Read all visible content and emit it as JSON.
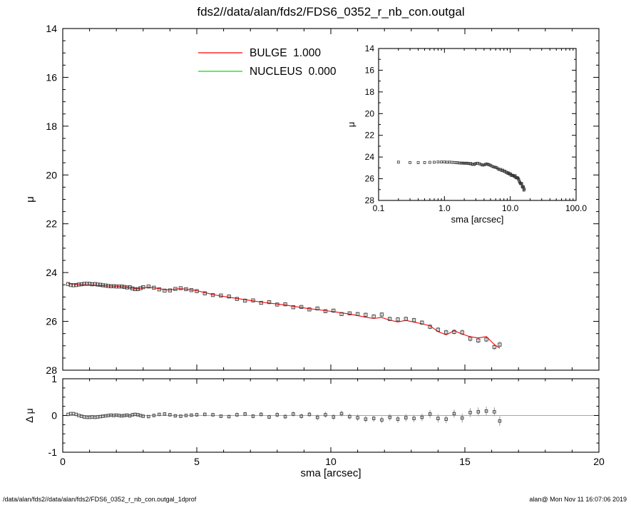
{
  "title": "fds2//data/alan/fds2/FDS6_0352_r_nb_con.outgal",
  "footer": {
    "left": "/data/alan/fds2//data/alan/fds2/FDS6_0352_r_nb_con.outgal_1dprof",
    "right": "alan@ Mon Nov 11 16:07:06 2019"
  },
  "colors": {
    "bulge_line": "#ff0000",
    "nucleus_line": "#00e000",
    "data_marker": "#3a3a3a",
    "error_bar": "#9a9a9a",
    "axis": "#000000",
    "zero_line": "#8a8a8a",
    "background": "#ffffff"
  },
  "chart_data": {
    "type": "scatter",
    "title": "fds2//data/alan/fds2/FDS6_0352_r_nb_con.outgal",
    "legend": [
      {
        "label": "BULGE",
        "value": "1.000",
        "color": "#ff0000"
      },
      {
        "label": "NUCLEUS",
        "value": "0.000",
        "color": "#00e000"
      }
    ],
    "panels": {
      "main": {
        "xlabel": "",
        "ylabel": "μ",
        "xlim": [
          0,
          20
        ],
        "ylim_top_to_bottom": [
          14,
          28
        ],
        "yticks": [
          14,
          16,
          18,
          20,
          22,
          24,
          26,
          28
        ],
        "xticks": [
          0,
          5,
          10,
          15,
          20
        ],
        "xtick_labels_shown": false,
        "grid": false
      },
      "inset": {
        "xlabel": "sma [arcsec]",
        "ylabel": "μ",
        "xscale": "log",
        "xlim": [
          0.1,
          100
        ],
        "ylim_top_to_bottom": [
          14,
          28
        ],
        "yticks": [
          14,
          16,
          18,
          20,
          22,
          24,
          26,
          28
        ],
        "xticks": [
          0.1,
          1,
          10,
          100
        ],
        "xtick_labels": [
          "0.1",
          "1.0",
          "10.0",
          "100.0"
        ],
        "grid": false
      },
      "residual": {
        "xlabel": "sma [arcsec]",
        "ylabel": "Δ μ",
        "xlim": [
          0,
          20
        ],
        "ylim": [
          -1,
          1
        ],
        "yticks": [
          -1,
          0,
          1
        ],
        "xticks": [
          0,
          5,
          10,
          15,
          20
        ],
        "zero_line": true,
        "grid": false
      }
    },
    "series": {
      "profile": {
        "name": "observed surface brightness profile",
        "marker": "open-square",
        "point_format": [
          "sma_arcsec",
          "mu",
          "mu_err"
        ],
        "points": [
          [
            0.2,
            24.47,
            0.01
          ],
          [
            0.3,
            24.51,
            0.01
          ],
          [
            0.4,
            24.52,
            0.01
          ],
          [
            0.5,
            24.51,
            0.01
          ],
          [
            0.6,
            24.49,
            0.01
          ],
          [
            0.7,
            24.48,
            0.02
          ],
          [
            0.8,
            24.46,
            0.02
          ],
          [
            0.9,
            24.46,
            0.02
          ],
          [
            1.0,
            24.46,
            0.02
          ],
          [
            1.1,
            24.48,
            0.02
          ],
          [
            1.2,
            24.47,
            0.02
          ],
          [
            1.3,
            24.49,
            0.02
          ],
          [
            1.4,
            24.5,
            0.02
          ],
          [
            1.5,
            24.52,
            0.02
          ],
          [
            1.6,
            24.53,
            0.02
          ],
          [
            1.7,
            24.55,
            0.02
          ],
          [
            1.8,
            24.56,
            0.02
          ],
          [
            1.9,
            24.56,
            0.02
          ],
          [
            2.0,
            24.57,
            0.02
          ],
          [
            2.1,
            24.57,
            0.02
          ],
          [
            2.2,
            24.57,
            0.03
          ],
          [
            2.3,
            24.59,
            0.03
          ],
          [
            2.4,
            24.61,
            0.03
          ],
          [
            2.5,
            24.6,
            0.03
          ],
          [
            2.6,
            24.65,
            0.03
          ],
          [
            2.7,
            24.68,
            0.03
          ],
          [
            2.8,
            24.68,
            0.03
          ],
          [
            2.9,
            24.64,
            0.03
          ],
          [
            3.0,
            24.6,
            0.03
          ],
          [
            3.2,
            24.57,
            0.03
          ],
          [
            3.4,
            24.62,
            0.03
          ],
          [
            3.6,
            24.69,
            0.04
          ],
          [
            3.8,
            24.74,
            0.04
          ],
          [
            4.0,
            24.73,
            0.04
          ],
          [
            4.2,
            24.67,
            0.04
          ],
          [
            4.4,
            24.64,
            0.04
          ],
          [
            4.6,
            24.68,
            0.04
          ],
          [
            4.8,
            24.72,
            0.04
          ],
          [
            5.0,
            24.76,
            0.05
          ],
          [
            5.3,
            24.85,
            0.05
          ],
          [
            5.6,
            24.92,
            0.05
          ],
          [
            5.9,
            24.94,
            0.05
          ],
          [
            6.2,
            24.98,
            0.05
          ],
          [
            6.5,
            25.08,
            0.06
          ],
          [
            6.8,
            25.15,
            0.06
          ],
          [
            7.1,
            25.14,
            0.06
          ],
          [
            7.4,
            25.24,
            0.06
          ],
          [
            7.7,
            25.21,
            0.06
          ],
          [
            8.0,
            25.31,
            0.07
          ],
          [
            8.3,
            25.3,
            0.07
          ],
          [
            8.6,
            25.42,
            0.07
          ],
          [
            8.9,
            25.41,
            0.07
          ],
          [
            9.2,
            25.51,
            0.07
          ],
          [
            9.5,
            25.47,
            0.08
          ],
          [
            9.8,
            25.58,
            0.08
          ],
          [
            10.1,
            25.56,
            0.08
          ],
          [
            10.4,
            25.7,
            0.08
          ],
          [
            10.7,
            25.67,
            0.08
          ],
          [
            11.0,
            25.7,
            0.09
          ],
          [
            11.3,
            25.73,
            0.09
          ],
          [
            11.6,
            25.8,
            0.09
          ],
          [
            11.9,
            25.72,
            0.09
          ],
          [
            12.2,
            25.9,
            0.09
          ],
          [
            12.5,
            25.92,
            0.1
          ],
          [
            12.8,
            25.9,
            0.1
          ],
          [
            13.1,
            25.95,
            0.1
          ],
          [
            13.4,
            26.05,
            0.1
          ],
          [
            13.7,
            26.22,
            0.11
          ],
          [
            14.0,
            26.34,
            0.11
          ],
          [
            14.3,
            26.45,
            0.11
          ],
          [
            14.6,
            26.43,
            0.11
          ],
          [
            14.9,
            26.45,
            0.12
          ],
          [
            15.2,
            26.71,
            0.12
          ],
          [
            15.5,
            26.78,
            0.12
          ],
          [
            15.8,
            26.74,
            0.12
          ],
          [
            16.1,
            27.05,
            0.12
          ],
          [
            16.3,
            26.95,
            0.13
          ]
        ]
      },
      "bulge_model": {
        "name": "BULGE model",
        "style": "line",
        "color": "#ff0000",
        "point_format": [
          "sma_arcsec",
          "mu"
        ],
        "points": [
          [
            0.2,
            24.44
          ],
          [
            0.3,
            24.46
          ],
          [
            0.4,
            24.47
          ],
          [
            0.5,
            24.48
          ],
          [
            0.6,
            24.49
          ],
          [
            0.7,
            24.5
          ],
          [
            0.8,
            24.5
          ],
          [
            0.9,
            24.51
          ],
          [
            1.0,
            24.51
          ],
          [
            1.1,
            24.52
          ],
          [
            1.2,
            24.52
          ],
          [
            1.3,
            24.53
          ],
          [
            1.4,
            24.53
          ],
          [
            1.5,
            24.54
          ],
          [
            1.6,
            24.54
          ],
          [
            1.7,
            24.55
          ],
          [
            1.8,
            24.55
          ],
          [
            1.9,
            24.56
          ],
          [
            2.0,
            24.56
          ],
          [
            2.1,
            24.57
          ],
          [
            2.2,
            24.58
          ],
          [
            2.3,
            24.59
          ],
          [
            2.4,
            24.6
          ],
          [
            2.5,
            24.61
          ],
          [
            2.6,
            24.63
          ],
          [
            2.7,
            24.65
          ],
          [
            2.8,
            24.66
          ],
          [
            2.9,
            24.64
          ],
          [
            3.0,
            24.62
          ],
          [
            3.2,
            24.6
          ],
          [
            3.4,
            24.62
          ],
          [
            3.6,
            24.66
          ],
          [
            3.8,
            24.7
          ],
          [
            4.0,
            24.71
          ],
          [
            4.2,
            24.68
          ],
          [
            4.4,
            24.66
          ],
          [
            4.6,
            24.68
          ],
          [
            4.8,
            24.71
          ],
          [
            5.0,
            24.74
          ],
          [
            5.3,
            24.82
          ],
          [
            5.6,
            24.9
          ],
          [
            5.9,
            24.96
          ],
          [
            6.2,
            25.01
          ],
          [
            6.5,
            25.06
          ],
          [
            6.8,
            25.11
          ],
          [
            7.1,
            25.16
          ],
          [
            7.4,
            25.21
          ],
          [
            7.7,
            25.25
          ],
          [
            8.0,
            25.29
          ],
          [
            8.3,
            25.33
          ],
          [
            8.6,
            25.38
          ],
          [
            8.9,
            25.43
          ],
          [
            9.2,
            25.48
          ],
          [
            9.5,
            25.52
          ],
          [
            9.8,
            25.56
          ],
          [
            10.1,
            25.6
          ],
          [
            10.4,
            25.65
          ],
          [
            10.7,
            25.7
          ],
          [
            11.0,
            25.76
          ],
          [
            11.3,
            25.83
          ],
          [
            11.6,
            25.88
          ],
          [
            11.9,
            25.84
          ],
          [
            12.2,
            25.95
          ],
          [
            12.5,
            26.02
          ],
          [
            12.8,
            25.96
          ],
          [
            13.1,
            26.03
          ],
          [
            13.4,
            26.1
          ],
          [
            13.7,
            26.18
          ],
          [
            14.0,
            26.42
          ],
          [
            14.3,
            26.55
          ],
          [
            14.6,
            26.38
          ],
          [
            14.9,
            26.52
          ],
          [
            15.2,
            26.63
          ],
          [
            15.5,
            26.68
          ],
          [
            15.8,
            26.62
          ],
          [
            16.1,
            26.95
          ],
          [
            16.3,
            27.1
          ]
        ]
      },
      "residual": {
        "name": "data minus model",
        "point_format": [
          "sma_arcsec",
          "delta_mu"
        ],
        "note": "errors same as profile mu_err, parallel index",
        "points": [
          [
            0.2,
            0.03
          ],
          [
            0.3,
            0.05
          ],
          [
            0.4,
            0.05
          ],
          [
            0.5,
            0.03
          ],
          [
            0.6,
            0
          ],
          [
            0.7,
            -0.02
          ],
          [
            0.8,
            -0.04
          ],
          [
            0.9,
            -0.05
          ],
          [
            1.0,
            -0.05
          ],
          [
            1.1,
            -0.04
          ],
          [
            1.2,
            -0.05
          ],
          [
            1.3,
            -0.04
          ],
          [
            1.4,
            -0.03
          ],
          [
            1.5,
            -0.02
          ],
          [
            1.6,
            -0.01
          ],
          [
            1.7,
            0
          ],
          [
            1.8,
            0.01
          ],
          [
            1.9,
            0
          ],
          [
            2.0,
            0.01
          ],
          [
            2.1,
            0
          ],
          [
            2.2,
            -0.01
          ],
          [
            2.3,
            0
          ],
          [
            2.4,
            0.01
          ],
          [
            2.5,
            -0.01
          ],
          [
            2.6,
            0.02
          ],
          [
            2.7,
            0.03
          ],
          [
            2.8,
            0.02
          ],
          [
            2.9,
            0
          ],
          [
            3.0,
            -0.02
          ],
          [
            3.2,
            -0.03
          ],
          [
            3.4,
            0
          ],
          [
            3.6,
            0.03
          ],
          [
            3.8,
            0.04
          ],
          [
            4.0,
            0.02
          ],
          [
            4.2,
            -0.01
          ],
          [
            4.4,
            -0.02
          ],
          [
            4.6,
            0
          ],
          [
            4.8,
            0.01
          ],
          [
            5.0,
            0.02
          ],
          [
            5.3,
            0.03
          ],
          [
            5.6,
            0.02
          ],
          [
            5.9,
            -0.02
          ],
          [
            6.2,
            -0.03
          ],
          [
            6.5,
            0.02
          ],
          [
            6.8,
            0.04
          ],
          [
            7.1,
            -0.02
          ],
          [
            7.4,
            0.03
          ],
          [
            7.7,
            -0.04
          ],
          [
            8.0,
            0.02
          ],
          [
            8.3,
            -0.03
          ],
          [
            8.6,
            0.04
          ],
          [
            8.9,
            -0.02
          ],
          [
            9.2,
            0.03
          ],
          [
            9.5,
            -0.05
          ],
          [
            9.8,
            0.02
          ],
          [
            10.1,
            -0.04
          ],
          [
            10.4,
            0.05
          ],
          [
            10.7,
            -0.03
          ],
          [
            11.0,
            -0.06
          ],
          [
            11.3,
            -0.1
          ],
          [
            11.6,
            -0.08
          ],
          [
            11.9,
            -0.12
          ],
          [
            12.2,
            -0.05
          ],
          [
            12.5,
            -0.1
          ],
          [
            12.8,
            -0.06
          ],
          [
            13.1,
            -0.08
          ],
          [
            13.4,
            -0.05
          ],
          [
            13.7,
            0.04
          ],
          [
            14.0,
            -0.08
          ],
          [
            14.3,
            -0.1
          ],
          [
            14.6,
            0.05
          ],
          [
            14.9,
            -0.07
          ],
          [
            15.2,
            0.08
          ],
          [
            15.5,
            0.1
          ],
          [
            15.8,
            0.12
          ],
          [
            16.1,
            0.1
          ],
          [
            16.3,
            -0.15
          ]
        ]
      }
    }
  }
}
